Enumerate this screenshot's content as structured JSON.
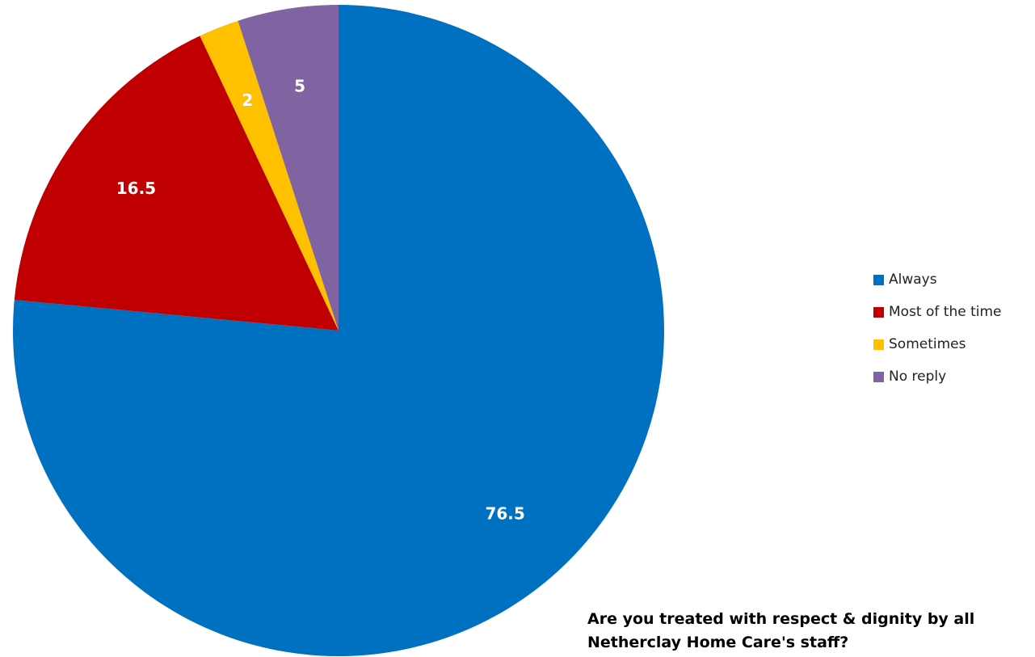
{
  "chart_data": {
    "type": "pie",
    "title": "Are you treated with respect & dignity by all Netherclay Home Care's staff?",
    "categories": [
      "Always",
      "Most of the time",
      "Sometimes",
      "No reply"
    ],
    "values": [
      76.5,
      16.5,
      2,
      5
    ],
    "data_labels": [
      "76.5",
      "16.5",
      "2",
      "5"
    ],
    "colors": [
      "#0070C0",
      "#C00000",
      "#FFC000",
      "#8064A2"
    ],
    "start_angle_deg": 0,
    "direction": "clockwise",
    "legend": {
      "position": "right",
      "entries": [
        "Always",
        "Most of the time",
        "Sometimes",
        "No reply"
      ]
    }
  }
}
